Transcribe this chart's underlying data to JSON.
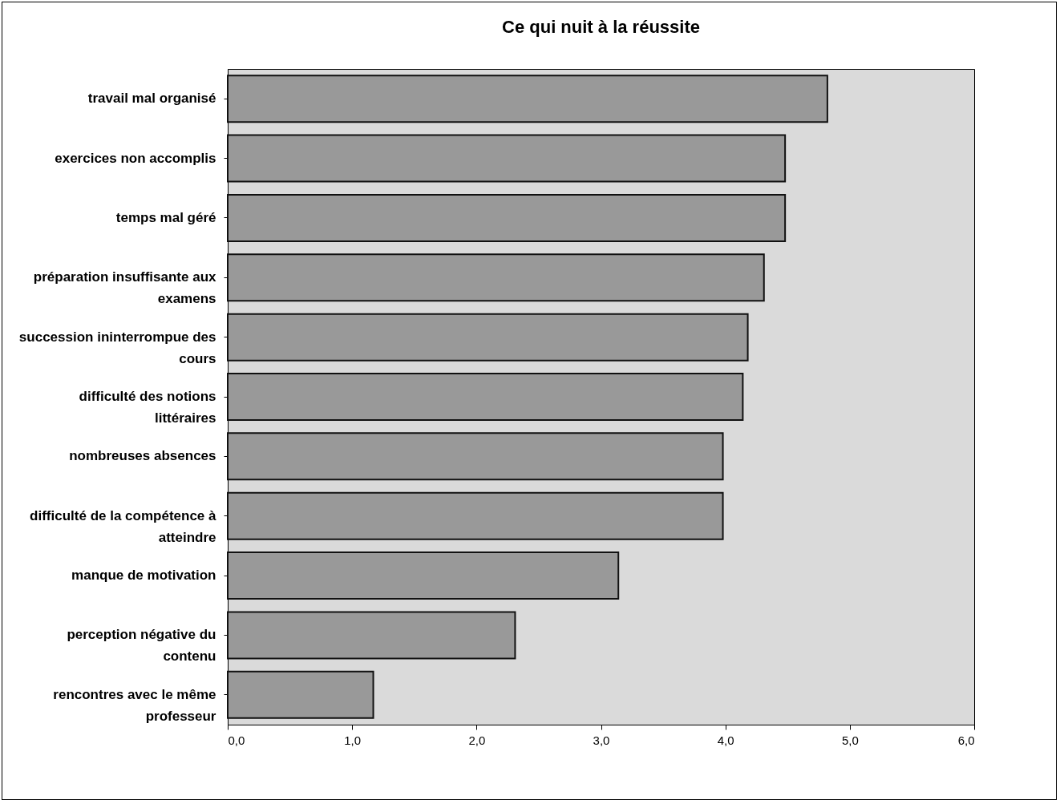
{
  "chart_data": {
    "type": "bar",
    "orientation": "horizontal",
    "title": "Ce qui nuit à la réussite",
    "categories": [
      "travail mal organisé",
      "exercices non accomplis",
      "temps mal géré",
      "préparation insuffisante aux examens",
      "succession ininterrompue des cours",
      "difficulté des notions littéraires",
      "nombreuses absences",
      "difficulté de la compétence à atteindre",
      "manque de motivation",
      "perception négative du contenu",
      "rencontres avec le même professeur"
    ],
    "values": [
      4.82,
      4.48,
      4.48,
      4.31,
      4.18,
      4.14,
      3.98,
      3.98,
      3.14,
      2.31,
      1.17
    ],
    "color": "#999999",
    "xlim": [
      0,
      6
    ],
    "xticks": [
      {
        "value": 0,
        "label": "0,0"
      },
      {
        "value": 1,
        "label": "1,0"
      },
      {
        "value": 2,
        "label": "2,0"
      },
      {
        "value": 3,
        "label": "3,0"
      },
      {
        "value": 4,
        "label": "4,0"
      },
      {
        "value": 5,
        "label": "5,0"
      },
      {
        "value": 6,
        "label": "6,0"
      }
    ],
    "grid": false
  }
}
